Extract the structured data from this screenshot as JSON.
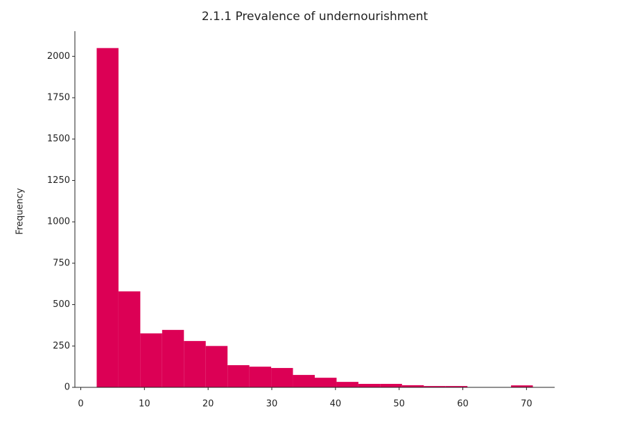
{
  "chart_data": {
    "type": "histogram",
    "title": "2.1.1 Prevalence of undernourishment",
    "y_label": "Frequency",
    "bins": [
      2.5,
      5.925,
      9.35,
      12.775,
      16.2,
      19.625,
      23.05,
      26.475,
      29.9,
      33.325,
      36.75,
      40.175,
      43.6,
      47.025,
      50.45,
      53.875,
      57.3,
      60.725,
      64.15,
      67.575,
      71.0
    ],
    "values": [
      2050,
      580,
      326,
      347,
      280,
      250,
      134,
      125,
      117,
      75,
      58,
      33,
      21,
      21,
      13,
      8,
      8,
      0,
      0,
      12
    ],
    "color": "#dc0055",
    "xlim": [
      -0.925,
      74.425
    ],
    "xticks": [
      0,
      10,
      20,
      30,
      40,
      50,
      60,
      70
    ],
    "ylim": [
      0,
      2152
    ],
    "yticks": [
      0,
      250,
      500,
      750,
      1000,
      1250,
      1500,
      1750,
      2000
    ]
  }
}
